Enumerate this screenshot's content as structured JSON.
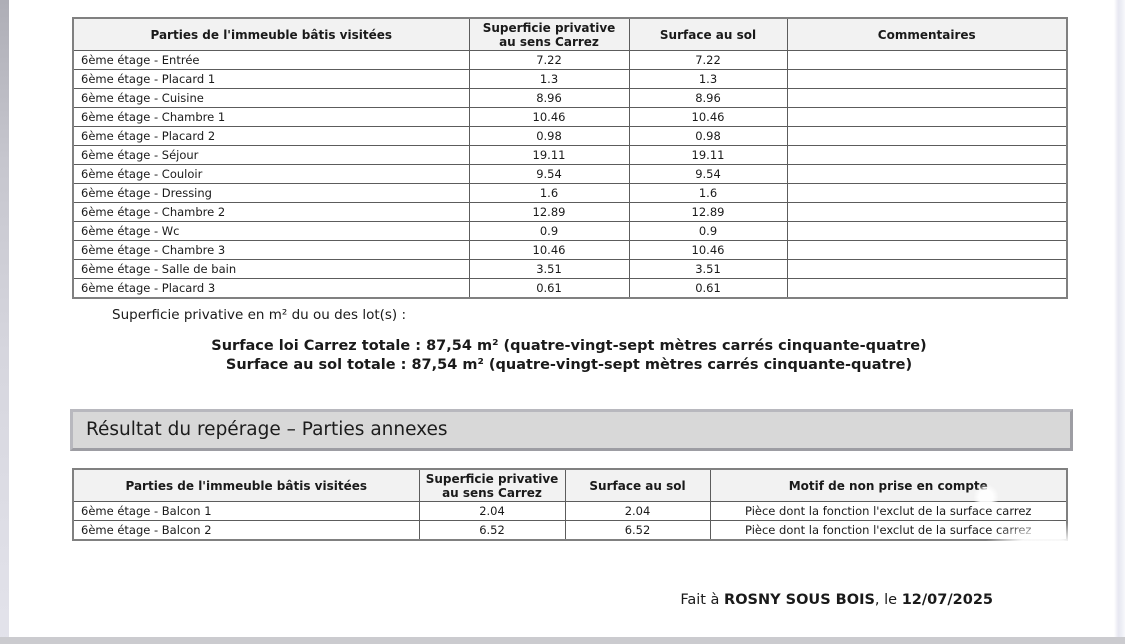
{
  "document": {
    "table_main": {
      "headers": [
        "Parties de l'immeuble bâtis visitées",
        "Superficie privative au sens Carrez",
        "Surface au sol",
        "Commentaires"
      ],
      "rows": [
        {
          "partie": "6ème étage - Entrée",
          "carrez": "7.22",
          "sol": "7.22",
          "commentaire": ""
        },
        {
          "partie": "6ème étage - Placard 1",
          "carrez": "1.3",
          "sol": "1.3",
          "commentaire": ""
        },
        {
          "partie": "6ème étage - Cuisine",
          "carrez": "8.96",
          "sol": "8.96",
          "commentaire": ""
        },
        {
          "partie": "6ème étage - Chambre 1",
          "carrez": "10.46",
          "sol": "10.46",
          "commentaire": ""
        },
        {
          "partie": "6ème étage - Placard 2",
          "carrez": "0.98",
          "sol": "0.98",
          "commentaire": ""
        },
        {
          "partie": "6ème étage - Séjour",
          "carrez": "19.11",
          "sol": "19.11",
          "commentaire": ""
        },
        {
          "partie": "6ème étage - Couloir",
          "carrez": "9.54",
          "sol": "9.54",
          "commentaire": ""
        },
        {
          "partie": "6ème étage - Dressing",
          "carrez": "1.6",
          "sol": "1.6",
          "commentaire": ""
        },
        {
          "partie": "6ème étage - Chambre 2",
          "carrez": "12.89",
          "sol": "12.89",
          "commentaire": ""
        },
        {
          "partie": "6ème étage - Wc",
          "carrez": "0.9",
          "sol": "0.9",
          "commentaire": ""
        },
        {
          "partie": "6ème étage - Chambre 3",
          "carrez": "10.46",
          "sol": "10.46",
          "commentaire": ""
        },
        {
          "partie": "6ème étage - Salle de bain",
          "carrez": "3.51",
          "sol": "3.51",
          "commentaire": ""
        },
        {
          "partie": "6ème étage - Placard 3",
          "carrez": "0.61",
          "sol": "0.61",
          "commentaire": ""
        }
      ]
    },
    "summary": {
      "intro": "Superficie privative en m² du ou des lot(s) :",
      "total_carrez": "Surface loi Carrez totale : 87,54 m² (quatre-vingt-sept mètres carrés cinquante-quatre)",
      "total_sol": "Surface au sol totale : 87,54 m² (quatre-vingt-sept mètres carrés cinquante-quatre)"
    },
    "section_annexes": {
      "title": "Résultat du repérage – Parties annexes",
      "table": {
        "headers": [
          "Parties de l'immeuble bâtis visitées",
          "Superficie privative au sens Carrez",
          "Surface au sol",
          "Motif de non prise en compte"
        ],
        "rows": [
          {
            "partie": "6ème étage - Balcon 1",
            "carrez": "2.04",
            "sol": "2.04",
            "motif": "Pièce dont la fonction l'exclut de la surface carrez"
          },
          {
            "partie": "6ème étage - Balcon 2",
            "carrez": "6.52",
            "sol": "6.52",
            "motif": "Pièce dont la fonction l'exclut de la surface carrez"
          }
        ]
      }
    },
    "footer": {
      "prefix": "Fait à ",
      "city": "ROSNY SOUS BOIS",
      "separator": ", le ",
      "date": "12/07/2025"
    },
    "colors": {
      "table_header_bg": "#f2f2f2",
      "section_header_bg": "#d8d8d8",
      "table_border": "#5c5c5c",
      "text": "#1a1a1a"
    }
  }
}
